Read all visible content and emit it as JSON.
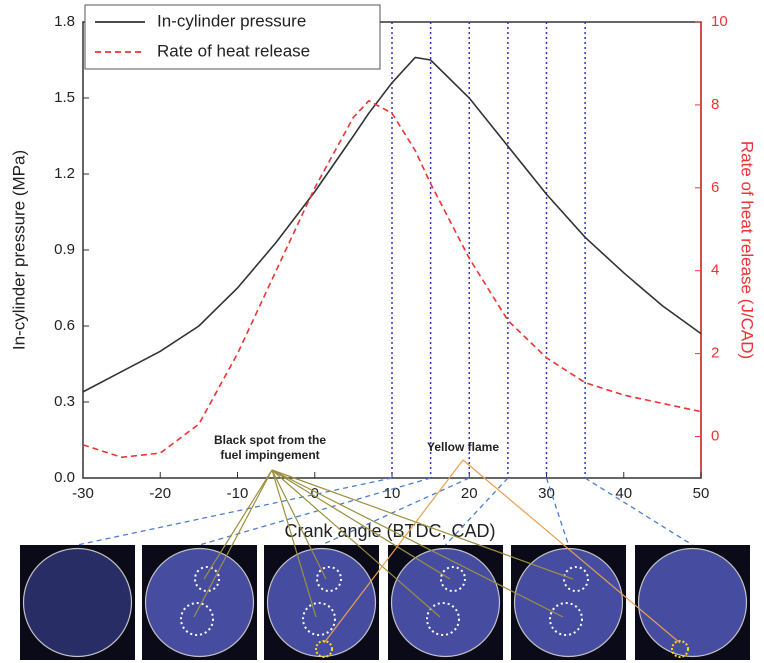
{
  "chart_data": {
    "type": "line",
    "x_label": "Crank angle (BTDC, CAD)",
    "y_label": "In-cylinder pressure (MPa)",
    "y2_label": "Rate of heat release (J/CAD)",
    "x": [
      -30,
      -25,
      -20,
      -15,
      -10,
      -5,
      0,
      5,
      7,
      10,
      13,
      15,
      20,
      25,
      30,
      35,
      40,
      45,
      50
    ],
    "series": [
      {
        "name": "In-cylinder pressure",
        "color": "#333333",
        "axis": "y",
        "values": [
          0.34,
          0.42,
          0.5,
          0.6,
          0.75,
          0.93,
          1.13,
          1.35,
          1.44,
          1.56,
          1.66,
          1.65,
          1.5,
          1.31,
          1.12,
          0.95,
          0.81,
          0.68,
          0.57
        ]
      },
      {
        "name": "Rate of heat release",
        "color": "#ee3333",
        "axis": "y2",
        "values": [
          -0.2,
          -0.5,
          -0.4,
          0.3,
          2,
          4,
          6,
          7.7,
          8.1,
          7.8,
          6.9,
          6.1,
          4.3,
          2.8,
          1.9,
          1.3,
          1.0,
          0.8,
          0.6
        ]
      }
    ],
    "xlim": [
      -30,
      50
    ],
    "xticks": [
      -30,
      -20,
      -10,
      0,
      10,
      20,
      30,
      40,
      50
    ],
    "ylim": [
      0,
      1.8
    ],
    "yticks": [
      {
        "value": 0,
        "label": "0.0"
      },
      0.3,
      0.6,
      0.9,
      1.2,
      1.5,
      1.8
    ],
    "y2lim": [
      -1,
      10
    ],
    "y2ticks": [
      0,
      2,
      4,
      6,
      8,
      10
    ],
    "y2_color": "#ee3333",
    "markers": [
      10,
      15,
      20,
      25,
      30,
      35
    ],
    "marker_color": "#3333cc",
    "annotations": [
      "Black spot from the",
      "fuel impingement",
      "Yellow flame"
    ]
  }
}
